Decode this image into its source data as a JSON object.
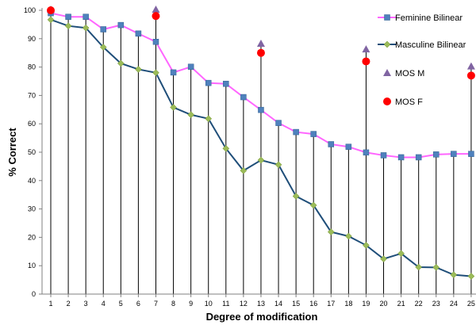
{
  "chart_data": {
    "type": "line",
    "xlabel": "Degree of modification",
    "ylabel": "% Correct",
    "x": [
      1,
      2,
      3,
      4,
      5,
      6,
      7,
      8,
      9,
      10,
      11,
      12,
      13,
      14,
      15,
      16,
      17,
      18,
      19,
      20,
      21,
      22,
      23,
      24,
      25
    ],
    "ylim": [
      0,
      100
    ],
    "yticks": [
      0,
      10,
      20,
      30,
      40,
      50,
      60,
      70,
      80,
      90,
      100
    ],
    "grid": false,
    "legend_position": "right",
    "series": [
      {
        "name": "Feminine Bilinear",
        "type": "line",
        "line_color": "#ff66ff",
        "marker": "square",
        "marker_color": "#4f81bd",
        "values": [
          99,
          97.7,
          97.7,
          93.3,
          94.8,
          91.8,
          88.9,
          78.1,
          80.1,
          74.4,
          74.1,
          69.4,
          64.9,
          60.3,
          57.1,
          56.4,
          52.8,
          51.9,
          49.9,
          48.9,
          48.2,
          48.2,
          49.2,
          49.4,
          49.4
        ]
      },
      {
        "name": "Masculine Bilinear",
        "type": "line",
        "line_color": "#1f4e79",
        "marker": "diamond",
        "marker_color": "#9bbb59",
        "values": [
          96.7,
          94.5,
          93.8,
          87,
          81.3,
          79.2,
          78,
          65.8,
          63.2,
          61.8,
          51.3,
          43.5,
          47.2,
          45.6,
          34.5,
          31.3,
          21.9,
          20.4,
          17.2,
          12.4,
          14.3,
          9.5,
          9.4,
          6.8,
          6.3
        ]
      },
      {
        "name": "MOS M",
        "type": "scatter",
        "marker": "triangle",
        "marker_color": "#8064a2",
        "points": [
          [
            1,
            100
          ],
          [
            7,
            100
          ],
          [
            13,
            88
          ],
          [
            19,
            86
          ],
          [
            25,
            80
          ]
        ]
      },
      {
        "name": "MOS F",
        "type": "scatter",
        "marker": "circle",
        "marker_color": "#ff0000",
        "points": [
          [
            1,
            100
          ],
          [
            7,
            98
          ],
          [
            13,
            85
          ],
          [
            19,
            82
          ],
          [
            25,
            77
          ]
        ]
      }
    ]
  }
}
